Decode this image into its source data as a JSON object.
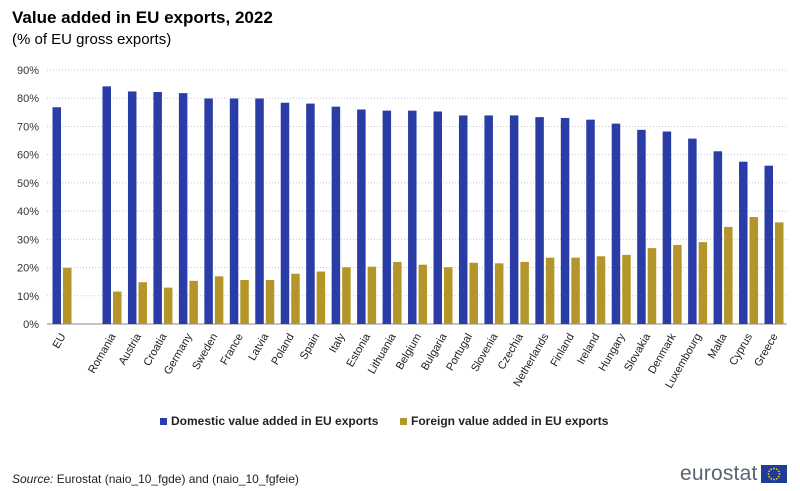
{
  "title": "Value added in EU exports, 2022",
  "subtitle": "(% of EU gross exports)",
  "source_label": "Source:",
  "source_text": "Eurostat (naio_10_fgde) and (naio_10_fgfeie)",
  "logo_text": "eurostat",
  "colors": {
    "domestic": "#2a3ca6",
    "foreign": "#b39529",
    "grid": "#c8c8c8",
    "axis": "#888888"
  },
  "chart_data": {
    "type": "bar",
    "title": "Value added in EU exports, 2022",
    "subtitle": "(% of EU gross exports)",
    "xlabel": "",
    "ylabel": "",
    "ylim": [
      0,
      90
    ],
    "yticks": [
      0,
      10,
      20,
      30,
      40,
      50,
      60,
      70,
      80,
      90
    ],
    "ytick_labels": [
      "0%",
      "10%",
      "20%",
      "30%",
      "40%",
      "50%",
      "60%",
      "70%",
      "80%",
      "90%"
    ],
    "grid": true,
    "legend_position": "bottom",
    "categories": [
      "EU",
      "Romania",
      "Austria",
      "Croatia",
      "Germany",
      "Sweden",
      "France",
      "Latvia",
      "Poland",
      "Spain",
      "Italy",
      "Estonia",
      "Lithuania",
      "Belgium",
      "Bulgaria",
      "Portugal",
      "Slovenia",
      "Czechia",
      "Netherlands",
      "Finland",
      "Ireland",
      "Hungary",
      "Slovakia",
      "Denmark",
      "Luxembourg",
      "Malta",
      "Cyprus",
      "Greece"
    ],
    "series": [
      {
        "name": "Domestic value added in EU exports",
        "values": [
          76.8,
          84.2,
          82.4,
          82.2,
          81.8,
          79.9,
          79.9,
          79.9,
          78.4,
          78.1,
          77.0,
          76.0,
          75.6,
          75.6,
          75.3,
          73.9,
          73.9,
          73.9,
          73.3,
          73.0,
          72.4,
          71.0,
          68.8,
          68.2,
          65.7,
          61.2,
          57.5,
          56.1
        ]
      },
      {
        "name": "Foreign value added in EU exports",
        "values": [
          19.9,
          11.5,
          14.8,
          12.9,
          15.3,
          16.9,
          15.6,
          15.6,
          17.8,
          18.6,
          20.1,
          20.3,
          22.0,
          21.0,
          20.1,
          21.7,
          21.5,
          22.0,
          23.5,
          23.5,
          24.0,
          24.5,
          26.9,
          28.0,
          29.0,
          34.4,
          37.9,
          36.0
        ]
      }
    ]
  }
}
